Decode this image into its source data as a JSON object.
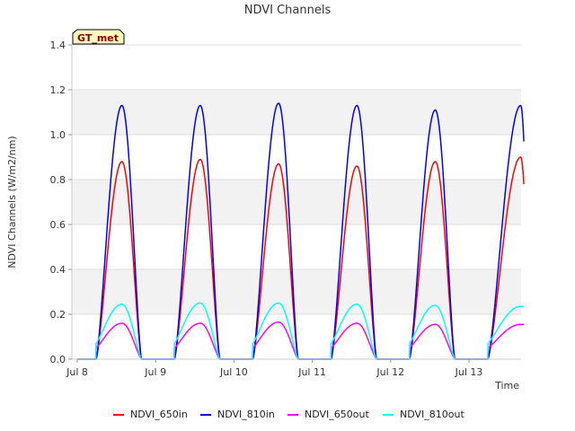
{
  "chart_data": {
    "type": "line",
    "title": "NDVI Channels",
    "xlabel": "Time",
    "ylabel": "NDVI Channels (W/m2/nm)",
    "xlim": [
      0,
      5.8
    ],
    "ylim": [
      0,
      1.4
    ],
    "yticks": [
      0.0,
      0.2,
      0.4,
      0.6,
      0.8,
      1.0,
      1.2,
      1.4
    ],
    "ytick_labels": [
      "0.0",
      "0.2",
      "0.4",
      "0.6",
      "0.8",
      "1.0",
      "1.2",
      "1.4"
    ],
    "xticks": [
      0,
      1,
      2,
      3,
      4,
      5
    ],
    "xtick_labels": [
      "Jul 8",
      "Jul 9",
      "Jul 10",
      "Jul 11",
      "Jul 12",
      "Jul 13"
    ],
    "grid": true,
    "alternating_bands": true,
    "annotation": "GT_met",
    "legend_position": "bottom",
    "x_unit": "days since Jul 8",
    "day_windows": {
      "start_offsets": [
        0.24,
        0.24,
        0.24,
        0.24,
        0.24,
        0.24
      ],
      "end_offsets": [
        0.82,
        0.82,
        0.82,
        0.82,
        0.82,
        0.7
      ],
      "peak_offset": 0.57,
      "shape_exponent": 1.4
    },
    "series": [
      {
        "name": "NDVI_650in",
        "color": "#ff0000",
        "peaks": [
          0.88,
          0.89,
          0.87,
          0.86,
          0.88,
          0.9
        ],
        "last_value": 0.78
      },
      {
        "name": "NDVI_810in",
        "color": "#0000ff",
        "peaks": [
          1.13,
          1.13,
          1.14,
          1.13,
          1.11,
          1.13
        ],
        "last_value": 0.97
      },
      {
        "name": "NDVI_650out",
        "color": "#ff00ff",
        "peaks": [
          0.16,
          0.16,
          0.165,
          0.16,
          0.155,
          0.155
        ],
        "last_value": 0.155,
        "dawn_value": 0.05
      },
      {
        "name": "NDVI_810out",
        "color": "#00ffff",
        "peaks": [
          0.245,
          0.25,
          0.25,
          0.245,
          0.24,
          0.235
        ],
        "last_value": 0.235,
        "dawn_value": 0.07
      }
    ]
  }
}
